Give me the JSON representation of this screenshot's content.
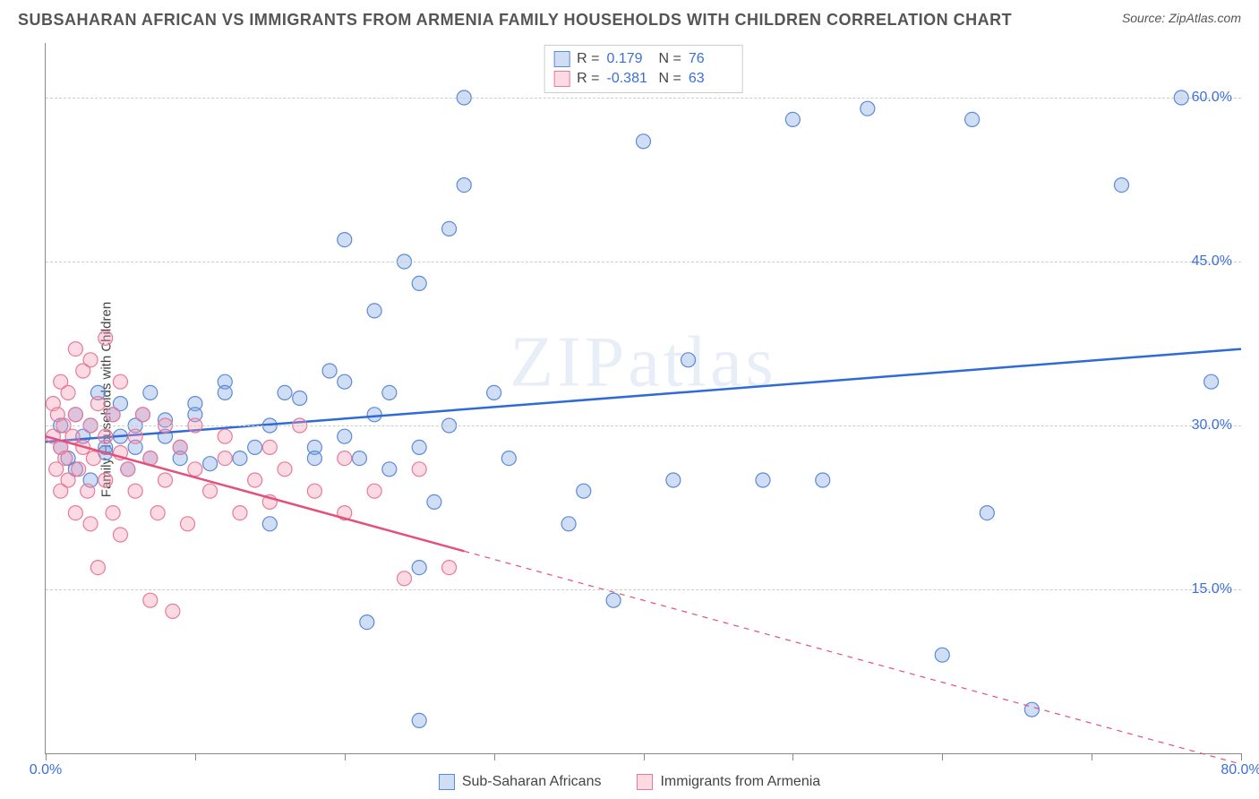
{
  "header": {
    "title": "SUBSAHARAN AFRICAN VS IMMIGRANTS FROM ARMENIA FAMILY HOUSEHOLDS WITH CHILDREN CORRELATION CHART",
    "source": "Source: ZipAtlas.com"
  },
  "ylabel": "Family Households with Children",
  "watermark": "ZIPatlas",
  "chart": {
    "type": "scatter",
    "xlim": [
      0,
      80
    ],
    "ylim": [
      0,
      65
    ],
    "yticks": [
      {
        "v": 15,
        "label": "15.0%"
      },
      {
        "v": 30,
        "label": "30.0%"
      },
      {
        "v": 45,
        "label": "45.0%"
      },
      {
        "v": 60,
        "label": "60.0%"
      }
    ],
    "xticks": [
      0,
      10,
      20,
      30,
      40,
      50,
      60,
      70,
      80
    ],
    "xtick_labels": {
      "0": "0.0%",
      "80": "80.0%"
    },
    "background_color": "#ffffff",
    "grid_color": "#cccccc",
    "axis_color": "#888888",
    "tick_label_color": "#3b6fd8",
    "marker_radius": 8,
    "marker_stroke_width": 1.2,
    "trend_line_width": 2.5
  },
  "series": [
    {
      "key": "ssa",
      "name": "Sub-Saharan Africans",
      "fill": "rgba(120,160,225,0.35)",
      "stroke": "#5b8ad6",
      "trend_color": "#2e6bd6",
      "R": "0.179",
      "N": "76",
      "trend": {
        "x1": 0,
        "y1": 28.5,
        "x2": 80,
        "y2": 37,
        "dash_from_x": null
      },
      "points": [
        [
          1,
          28
        ],
        [
          1,
          30
        ],
        [
          1.5,
          27
        ],
        [
          2,
          31
        ],
        [
          2,
          26
        ],
        [
          2.5,
          29
        ],
        [
          3,
          30
        ],
        [
          3,
          25
        ],
        [
          3.5,
          33
        ],
        [
          4,
          28
        ],
        [
          4,
          27.5
        ],
        [
          4.5,
          31
        ],
        [
          5,
          29
        ],
        [
          5,
          32
        ],
        [
          5.5,
          26
        ],
        [
          6,
          30
        ],
        [
          6,
          28
        ],
        [
          6.5,
          31
        ],
        [
          7,
          27
        ],
        [
          7,
          33
        ],
        [
          8,
          29
        ],
        [
          8,
          30.5
        ],
        [
          9,
          28
        ],
        [
          9,
          27
        ],
        [
          10,
          32
        ],
        [
          10,
          31
        ],
        [
          11,
          26.5
        ],
        [
          12,
          34
        ],
        [
          12,
          33
        ],
        [
          13,
          27
        ],
        [
          14,
          28
        ],
        [
          15,
          21
        ],
        [
          15,
          30
        ],
        [
          16,
          33
        ],
        [
          17,
          32.5
        ],
        [
          18,
          28
        ],
        [
          18,
          27
        ],
        [
          19,
          35
        ],
        [
          20,
          29
        ],
        [
          20,
          47
        ],
        [
          20,
          34
        ],
        [
          21,
          27
        ],
        [
          21.5,
          12
        ],
        [
          22,
          31
        ],
        [
          22,
          40.5
        ],
        [
          23,
          26
        ],
        [
          23,
          33
        ],
        [
          24,
          45
        ],
        [
          25,
          28
        ],
        [
          25,
          43
        ],
        [
          25,
          17
        ],
        [
          25,
          3
        ],
        [
          26,
          23
        ],
        [
          27,
          48
        ],
        [
          27,
          30
        ],
        [
          28,
          60
        ],
        [
          28,
          52
        ],
        [
          30,
          33
        ],
        [
          31,
          27
        ],
        [
          35,
          21
        ],
        [
          36,
          24
        ],
        [
          38,
          14
        ],
        [
          40,
          56
        ],
        [
          42,
          25
        ],
        [
          43,
          36
        ],
        [
          48,
          25
        ],
        [
          50,
          58
        ],
        [
          52,
          25
        ],
        [
          55,
          59
        ],
        [
          60,
          9
        ],
        [
          62,
          58
        ],
        [
          63,
          22
        ],
        [
          66,
          4
        ],
        [
          72,
          52
        ],
        [
          76,
          60
        ],
        [
          78,
          34
        ]
      ]
    },
    {
      "key": "arm",
      "name": "Immigrants from Armenia",
      "fill": "rgba(245,150,175,0.35)",
      "stroke": "#e77a9a",
      "trend_color": "#e54f7c",
      "R": "-0.381",
      "N": "63",
      "trend": {
        "x1": 0,
        "y1": 29,
        "x2": 80,
        "y2": -1,
        "dash_from_x": 28
      },
      "points": [
        [
          0.5,
          29
        ],
        [
          0.5,
          32
        ],
        [
          0.7,
          26
        ],
        [
          0.8,
          31
        ],
        [
          1,
          28
        ],
        [
          1,
          34
        ],
        [
          1,
          24
        ],
        [
          1.2,
          30
        ],
        [
          1.3,
          27
        ],
        [
          1.5,
          33
        ],
        [
          1.5,
          25
        ],
        [
          1.8,
          29
        ],
        [
          2,
          37
        ],
        [
          2,
          22
        ],
        [
          2,
          31
        ],
        [
          2.2,
          26
        ],
        [
          2.5,
          35
        ],
        [
          2.5,
          28
        ],
        [
          2.8,
          24
        ],
        [
          3,
          30
        ],
        [
          3,
          36
        ],
        [
          3,
          21
        ],
        [
          3.2,
          27
        ],
        [
          3.5,
          32
        ],
        [
          3.5,
          17
        ],
        [
          4,
          29
        ],
        [
          4,
          25
        ],
        [
          4,
          38
        ],
        [
          4.5,
          22
        ],
        [
          4.5,
          31
        ],
        [
          5,
          27.5
        ],
        [
          5,
          20
        ],
        [
          5,
          34
        ],
        [
          5.5,
          26
        ],
        [
          6,
          29
        ],
        [
          6,
          24
        ],
        [
          6.5,
          31
        ],
        [
          7,
          14
        ],
        [
          7,
          27
        ],
        [
          7.5,
          22
        ],
        [
          8,
          30
        ],
        [
          8,
          25
        ],
        [
          8.5,
          13
        ],
        [
          9,
          28
        ],
        [
          9.5,
          21
        ],
        [
          10,
          26
        ],
        [
          10,
          30
        ],
        [
          11,
          24
        ],
        [
          12,
          27
        ],
        [
          12,
          29
        ],
        [
          13,
          22
        ],
        [
          14,
          25
        ],
        [
          15,
          28
        ],
        [
          15,
          23
        ],
        [
          16,
          26
        ],
        [
          17,
          30
        ],
        [
          18,
          24
        ],
        [
          20,
          22
        ],
        [
          20,
          27
        ],
        [
          22,
          24
        ],
        [
          24,
          16
        ],
        [
          25,
          26
        ],
        [
          27,
          17
        ]
      ]
    }
  ],
  "stats_box": {
    "rows": [
      {
        "swatch_series": "ssa",
        "R_label": "R =",
        "N_label": "N ="
      },
      {
        "swatch_series": "arm",
        "R_label": "R =",
        "N_label": "N ="
      }
    ]
  }
}
